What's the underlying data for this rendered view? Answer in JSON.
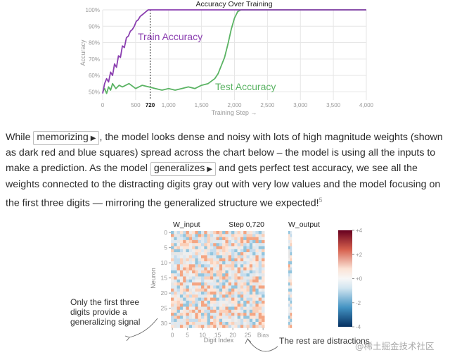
{
  "chart_data": {
    "type": "line",
    "title": "Accuracy Over Training",
    "xlabel": "Training Step →",
    "ylabel": "Accuracy",
    "xlim": [
      0,
      4000
    ],
    "ylim": [
      0.45,
      1.0
    ],
    "xticks": [
      "0",
      "500",
      "720",
      "1,000",
      "1,500",
      "2,000",
      "2,500",
      "3,000",
      "3,500",
      "4,000"
    ],
    "yticks": [
      "50%",
      "60%",
      "70%",
      "80%",
      "90%",
      "100%"
    ],
    "marker_step": 720,
    "series": [
      {
        "name": "Train Accuracy",
        "color": "#8b3fb0",
        "x": [
          0,
          30,
          60,
          90,
          120,
          150,
          180,
          210,
          240,
          270,
          300,
          330,
          360,
          390,
          420,
          450,
          480,
          510,
          540,
          570,
          600,
          630,
          660,
          690,
          720,
          4000
        ],
        "y": [
          0.49,
          0.55,
          0.58,
          0.56,
          0.62,
          0.6,
          0.67,
          0.65,
          0.72,
          0.71,
          0.78,
          0.77,
          0.83,
          0.84,
          0.87,
          0.88,
          0.9,
          0.93,
          0.94,
          0.96,
          0.97,
          0.98,
          0.99,
          1.0,
          1.0,
          1.0
        ]
      },
      {
        "name": "Test Accuracy",
        "color": "#5ab363",
        "x": [
          0,
          30,
          60,
          90,
          120,
          150,
          200,
          250,
          300,
          400,
          500,
          600,
          700,
          800,
          900,
          1000,
          1100,
          1200,
          1300,
          1400,
          1500,
          1600,
          1700,
          1750,
          1800,
          1850,
          1900,
          1950,
          2000,
          2050,
          2100,
          4000
        ],
        "y": [
          0.5,
          0.52,
          0.49,
          0.53,
          0.51,
          0.55,
          0.52,
          0.54,
          0.53,
          0.55,
          0.52,
          0.54,
          0.53,
          0.52,
          0.51,
          0.52,
          0.51,
          0.52,
          0.53,
          0.52,
          0.54,
          0.55,
          0.58,
          0.61,
          0.66,
          0.71,
          0.79,
          0.88,
          0.95,
          0.99,
          1.0,
          1.0
        ]
      }
    ]
  },
  "paragraph": {
    "t1": "While ",
    "btn_memorizing": "memorizing",
    "t2": ", the model looks dense and noisy with lots of high magnitude weights (shown as dark red and blue squares) spread across the chart below – the model is using all the inputs to make a prediction. As the model ",
    "btn_generalizes": "generalizes",
    "t3": " and gets perfect test accuracy, we see all the weights connected to the distracting digits gray out with very low values and the model focusing on the first three digits — mirroring the generalized structure we expected!",
    "footnote": "5",
    "play_glyph": "▶"
  },
  "heatmap": {
    "win_label": "W_input",
    "step_label": "Step 0,720",
    "wout_label": "W_output",
    "ylabel": "Neuron",
    "xlabel": "Digit Index",
    "yticks": [
      "0",
      "5",
      "10",
      "15",
      "20",
      "25",
      "30"
    ],
    "xticks": [
      "0",
      "5",
      "10",
      "15",
      "20",
      "25",
      "Bias"
    ],
    "colorbar_ticks": [
      "+4",
      "+2",
      "+0",
      "-2",
      "-4"
    ]
  },
  "annotations": {
    "left": "Only the first three digits provide a generalizing signal",
    "right": "The rest are distractions"
  },
  "watermark": "@稀土掘金技术社区",
  "colors": {
    "purple": "#8b3fb0",
    "green": "#5ab363",
    "grid": "#e6e6e6"
  }
}
